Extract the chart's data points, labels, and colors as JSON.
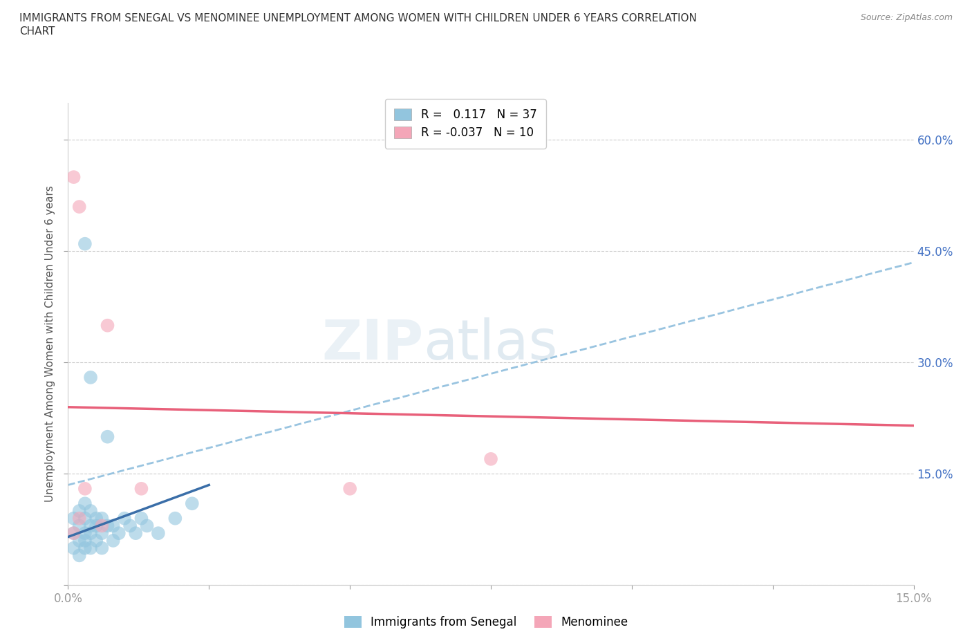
{
  "title": "IMMIGRANTS FROM SENEGAL VS MENOMINEE UNEMPLOYMENT AMONG WOMEN WITH CHILDREN UNDER 6 YEARS CORRELATION\nCHART",
  "source": "Source: ZipAtlas.com",
  "ylabel": "Unemployment Among Women with Children Under 6 years",
  "xlim": [
    0.0,
    0.15
  ],
  "ylim": [
    0.0,
    0.65
  ],
  "blue_R": "0.117",
  "blue_N": "37",
  "pink_R": "-0.037",
  "pink_N": "10",
  "blue_color": "#92c5de",
  "pink_color": "#f4a6b8",
  "blue_line_color": "#3a6ea8",
  "pink_line_color": "#e8607a",
  "dashed_line_color": "#99c4e0",
  "blue_scatter_x": [
    0.001,
    0.001,
    0.001,
    0.002,
    0.002,
    0.002,
    0.002,
    0.003,
    0.003,
    0.003,
    0.003,
    0.003,
    0.004,
    0.004,
    0.004,
    0.004,
    0.005,
    0.005,
    0.005,
    0.006,
    0.006,
    0.006,
    0.007,
    0.007,
    0.008,
    0.008,
    0.009,
    0.01,
    0.011,
    0.012,
    0.013,
    0.014,
    0.016,
    0.019,
    0.022,
    0.003,
    0.004
  ],
  "blue_scatter_y": [
    0.05,
    0.07,
    0.09,
    0.04,
    0.06,
    0.08,
    0.1,
    0.05,
    0.07,
    0.09,
    0.11,
    0.06,
    0.05,
    0.07,
    0.08,
    0.1,
    0.06,
    0.08,
    0.09,
    0.05,
    0.07,
    0.09,
    0.08,
    0.2,
    0.06,
    0.08,
    0.07,
    0.09,
    0.08,
    0.07,
    0.09,
    0.08,
    0.07,
    0.09,
    0.11,
    0.46,
    0.28
  ],
  "pink_scatter_x": [
    0.001,
    0.002,
    0.003,
    0.006,
    0.007,
    0.013,
    0.05,
    0.075,
    0.001,
    0.002
  ],
  "pink_scatter_y": [
    0.07,
    0.09,
    0.13,
    0.08,
    0.35,
    0.13,
    0.13,
    0.17,
    0.55,
    0.51
  ],
  "blue_trendline_x": [
    0.0,
    0.025
  ],
  "blue_trendline_y": [
    0.065,
    0.135
  ],
  "pink_trendline_x": [
    0.0,
    0.15
  ],
  "pink_trendline_y": [
    0.24,
    0.215
  ],
  "dashed_trendline_x": [
    0.0,
    0.15
  ],
  "dashed_trendline_y": [
    0.135,
    0.435
  ],
  "watermark_zip": "ZIP",
  "watermark_atlas": "atlas",
  "background_color": "#ffffff",
  "grid_color": "#cccccc"
}
